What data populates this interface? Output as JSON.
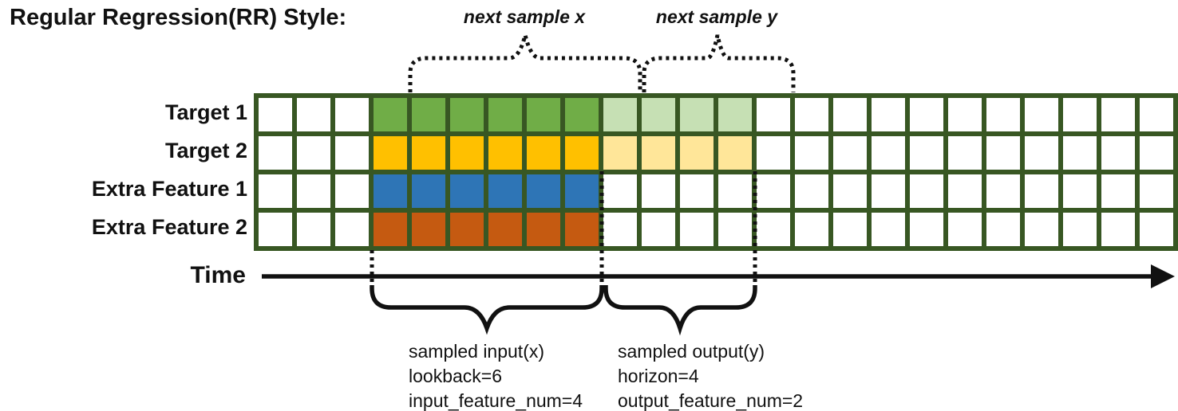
{
  "title": "Regular Regression(RR) Style:",
  "top_annotations": {
    "next_sample_x": "next sample x",
    "next_sample_y": "next sample y"
  },
  "time_axis": {
    "label": "Time"
  },
  "grid": {
    "columns": 24,
    "input_start_col": 3,
    "lookback": 6,
    "horizon": 4,
    "border_color": "#385723",
    "empty_color": "#FFFFFF",
    "rows": [
      {
        "label": "Target 1",
        "input_color": "#70AD47",
        "output_color": "#C6E0B4"
      },
      {
        "label": "Target 2",
        "input_color": "#FFC000",
        "output_color": "#FFE699"
      },
      {
        "label": "Extra Feature 1",
        "input_color": "#2E75B6",
        "output_color": null
      },
      {
        "label": "Extra Feature 2",
        "input_color": "#C55A11",
        "output_color": null
      }
    ]
  },
  "bottom_annotations": {
    "input_block": {
      "lines": [
        "sampled input(x)",
        "lookback=6",
        "input_feature_num=4"
      ]
    },
    "output_block": {
      "lines": [
        "sampled output(y)",
        "horizon=4",
        "output_feature_num=2"
      ]
    }
  }
}
